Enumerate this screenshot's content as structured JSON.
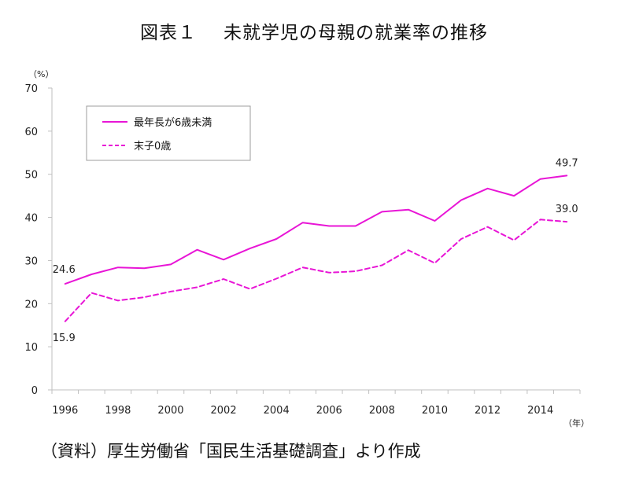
{
  "figure_label": "図表１",
  "chart_title": "未就学児の母親の就業率の推移",
  "source_note": "（資料）厚生労働省「国民生活基礎調査」より作成",
  "chart_data": {
    "type": "line",
    "y_unit": "（%）",
    "x_unit": "（年）",
    "ylim": [
      0,
      70
    ],
    "y_ticks": [
      0,
      10,
      20,
      30,
      40,
      50,
      60,
      70
    ],
    "x_ticks": [
      1996,
      1998,
      2000,
      2002,
      2004,
      2006,
      2008,
      2010,
      2012,
      2014
    ],
    "x": [
      1996,
      1997,
      1998,
      1999,
      2000,
      2001,
      2002,
      2003,
      2004,
      2005,
      2006,
      2007,
      2008,
      2009,
      2010,
      2011,
      2012,
      2013,
      2014,
      2015
    ],
    "grid": false,
    "legend_position": "top-left",
    "series": [
      {
        "name": "最年長が6歳未満",
        "style": "solid",
        "color": "#e815d6",
        "values": [
          24.6,
          26.8,
          28.4,
          28.2,
          29.1,
          32.5,
          30.2,
          32.8,
          35.0,
          38.8,
          38.0,
          38.0,
          41.3,
          41.8,
          39.2,
          44.0,
          46.7,
          45.0,
          48.9,
          49.7
        ]
      },
      {
        "name": "末子0歳",
        "style": "dashed",
        "color": "#e815d6",
        "values": [
          15.9,
          22.5,
          20.7,
          21.5,
          22.8,
          23.8,
          25.7,
          23.4,
          25.8,
          28.4,
          27.2,
          27.5,
          28.9,
          32.4,
          29.4,
          35.0,
          37.8,
          34.7,
          39.5,
          39.0
        ]
      }
    ],
    "data_labels": [
      {
        "series": 0,
        "index": 0,
        "text": "24.6"
      },
      {
        "series": 0,
        "index": 19,
        "text": "49.7"
      },
      {
        "series": 1,
        "index": 0,
        "text": "15.9"
      },
      {
        "series": 1,
        "index": 19,
        "text": "39.0"
      }
    ]
  }
}
